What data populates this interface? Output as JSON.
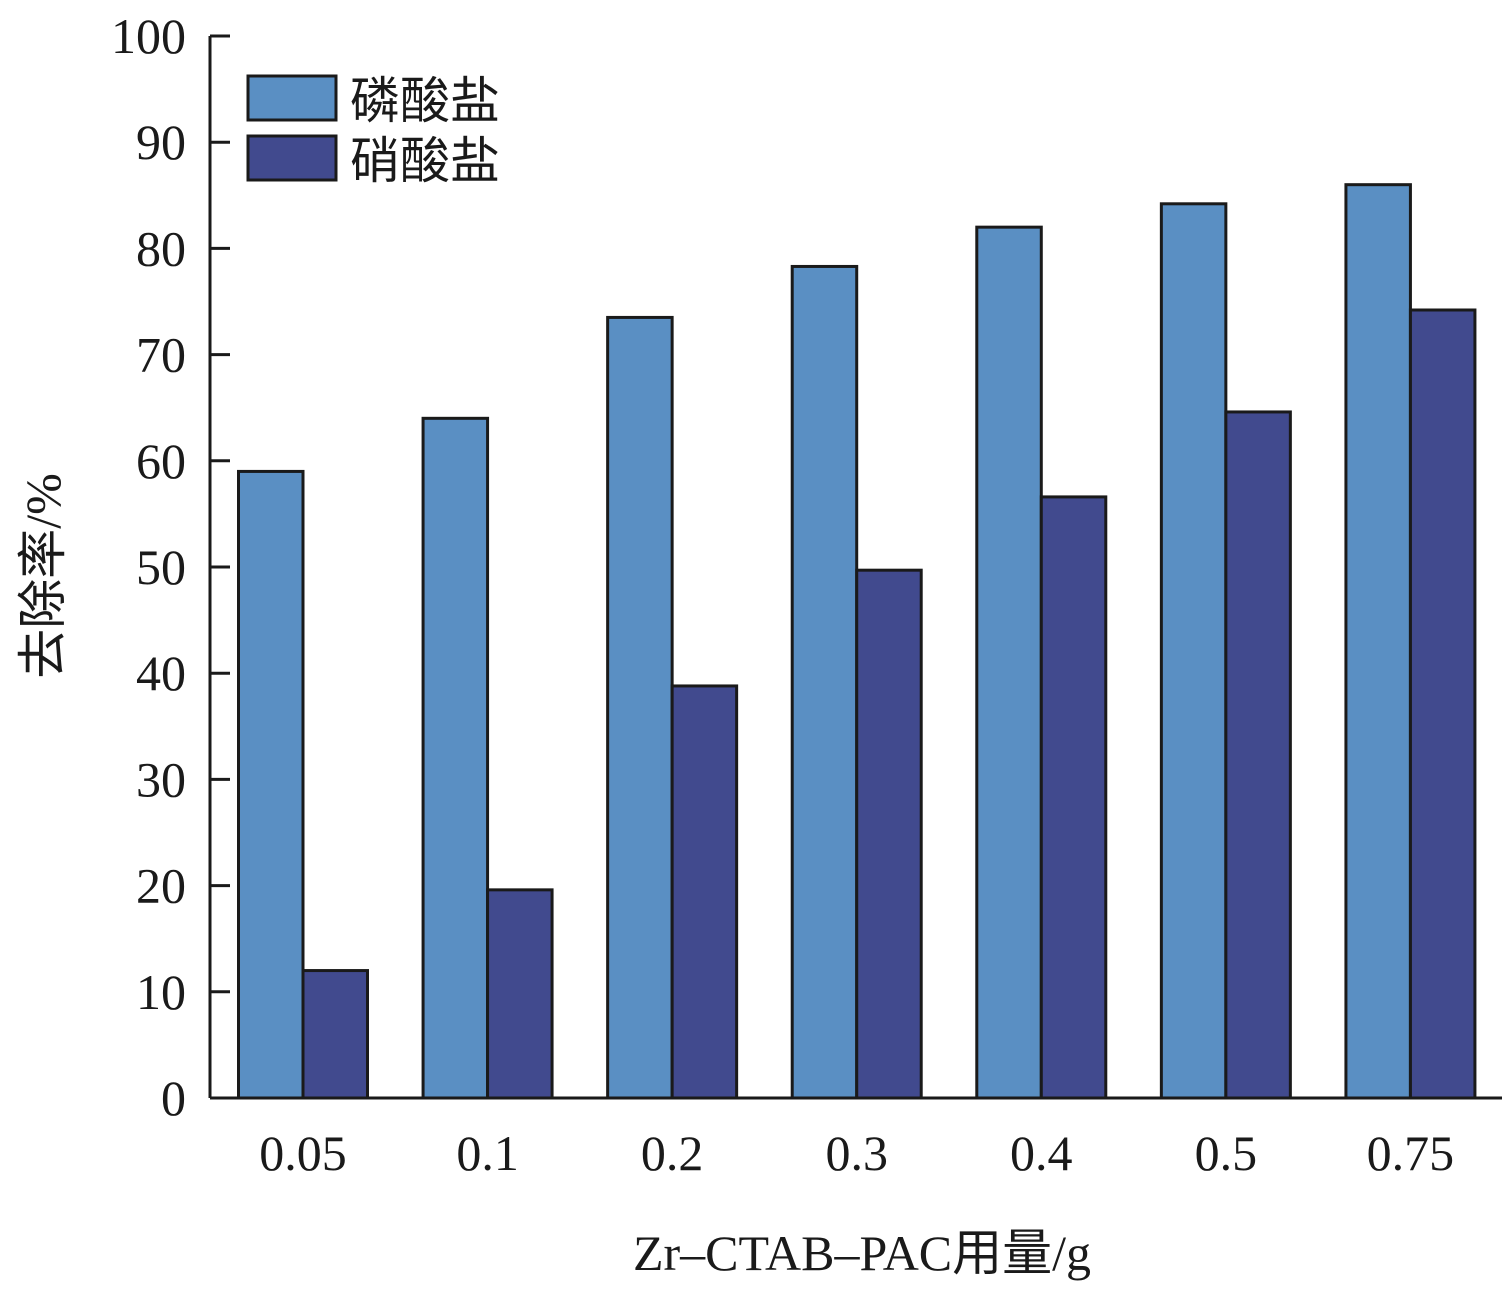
{
  "chart_data": {
    "type": "bar",
    "title": "",
    "xlabel": "Zr–CTAB–PAC用量/g",
    "ylabel": "去除率/%",
    "categories": [
      "0.05",
      "0.1",
      "0.2",
      "0.3",
      "0.4",
      "0.5",
      "0.75"
    ],
    "ylim": [
      0,
      100
    ],
    "yticks": [
      0,
      10,
      20,
      30,
      40,
      50,
      60,
      70,
      80,
      90,
      100
    ],
    "grid": false,
    "legend": "top-left",
    "series": [
      {
        "name": "磷酸盐",
        "color": "#5a8fc3",
        "values": [
          59,
          64,
          73.5,
          78.3,
          82,
          84.2,
          86
        ]
      },
      {
        "name": "硝酸盐",
        "color": "#414a8e",
        "values": [
          12,
          19.6,
          38.8,
          49.7,
          56.6,
          64.6,
          74.2
        ]
      }
    ]
  }
}
